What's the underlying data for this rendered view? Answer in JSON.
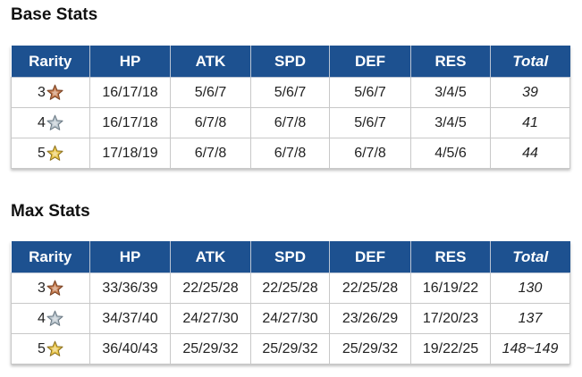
{
  "base_stats": {
    "title": "Base Stats",
    "headers": {
      "rarity": "Rarity",
      "hp": "HP",
      "atk": "ATK",
      "spd": "SPD",
      "def": "DEF",
      "res": "RES",
      "total": "Total"
    },
    "rows": [
      {
        "rarity": "3",
        "star": "bronze-star-icon",
        "hp": "16/17/18",
        "atk": "5/6/7",
        "spd": "5/6/7",
        "def": "5/6/7",
        "res": "3/4/5",
        "total": "39"
      },
      {
        "rarity": "4",
        "star": "silver-star-icon",
        "hp": "16/17/18",
        "atk": "6/7/8",
        "spd": "6/7/8",
        "def": "5/6/7",
        "res": "3/4/5",
        "total": "41"
      },
      {
        "rarity": "5",
        "star": "gold-star-icon",
        "hp": "17/18/19",
        "atk": "6/7/8",
        "spd": "6/7/8",
        "def": "6/7/8",
        "res": "4/5/6",
        "total": "44"
      }
    ]
  },
  "max_stats": {
    "title": "Max Stats",
    "headers": {
      "rarity": "Rarity",
      "hp": "HP",
      "atk": "ATK",
      "spd": "SPD",
      "def": "DEF",
      "res": "RES",
      "total": "Total"
    },
    "rows": [
      {
        "rarity": "3",
        "star": "bronze-star-icon",
        "hp": "33/36/39",
        "atk": "22/25/28",
        "spd": "22/25/28",
        "def": "22/25/28",
        "res": "16/19/22",
        "total": "130"
      },
      {
        "rarity": "4",
        "star": "silver-star-icon",
        "hp": "34/37/40",
        "atk": "24/27/30",
        "spd": "24/27/30",
        "def": "23/26/29",
        "res": "17/20/23",
        "total": "137"
      },
      {
        "rarity": "5",
        "star": "gold-star-icon",
        "hp": "36/40/43",
        "atk": "25/29/32",
        "spd": "25/29/32",
        "def": "25/29/32",
        "res": "19/22/25",
        "total": "148~149"
      }
    ]
  },
  "colors": {
    "header_bg": "#1d5190",
    "header_text": "#ffffff",
    "bronze_star": "#c47a4e",
    "silver_star": "#b8c4cc",
    "gold_star": "#e8c447"
  }
}
